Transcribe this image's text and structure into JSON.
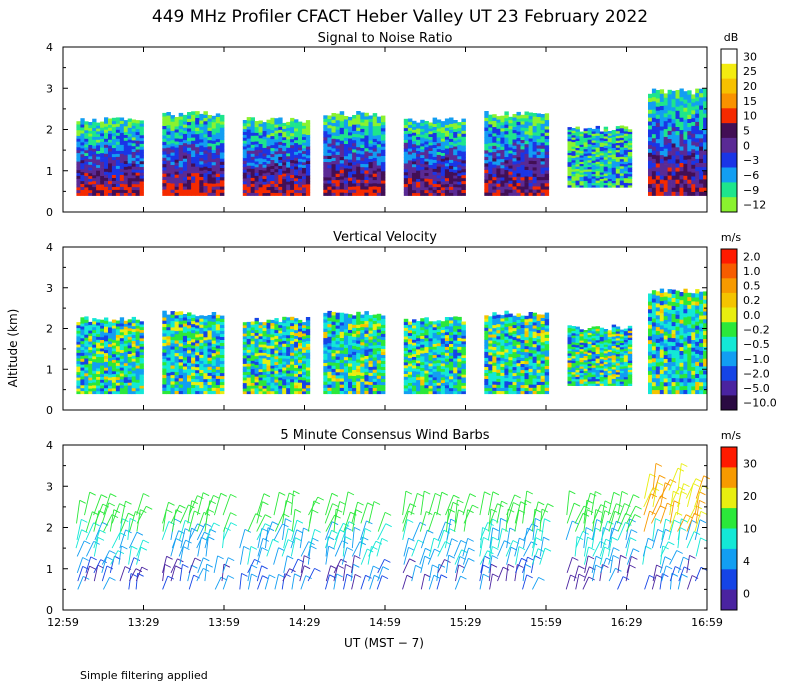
{
  "chart_data": {
    "type": "heatmap",
    "title": "449 MHz Profiler CFACT Heber Valley UT 23 February 2022",
    "note": "Simple filtering applied",
    "xlabel": "UT   (MST − 7)",
    "ylabel": "Altitude (km)",
    "x_ticks": [
      "12:59",
      "13:29",
      "13:59",
      "14:29",
      "14:59",
      "15:29",
      "15:59",
      "16:29",
      "16:59"
    ],
    "x_range_minutes": [
      0,
      240
    ],
    "y_ticks": [
      "0",
      "1",
      "2",
      "3",
      "4"
    ],
    "ylim": [
      0,
      4
    ],
    "panels": [
      {
        "title": "Signal to Noise Ratio",
        "unit": "dB",
        "colorbar_labels": [
          "30",
          "25",
          "20",
          "15",
          "10",
          "5",
          "0",
          "−3",
          "−6",
          "−9",
          "−12"
        ],
        "colorbar_colors": [
          "#ffffff",
          "#f4ec10",
          "#f7c100",
          "#f99200",
          "#f52a00",
          "#420f55",
          "#5a2a95",
          "#1a35e6",
          "#129ef2",
          "#1ee58c",
          "#8af22f"
        ]
      },
      {
        "title": "Vertical Velocity",
        "unit": "m/s",
        "colorbar_labels": [
          "2.0",
          "1.0",
          "0.5",
          "0.2",
          "0.0",
          "−0.2",
          "−0.5",
          "−1.0",
          "−2.0",
          "−5.0",
          "−10.0"
        ],
        "colorbar_colors": [
          "#ff1a00",
          "#f75c00",
          "#f79a00",
          "#f4c400",
          "#e8ee10",
          "#2be83a",
          "#13e8d6",
          "#129ef2",
          "#1544e6",
          "#4a23a0",
          "#2a0a42"
        ]
      },
      {
        "title": "5 Minute Consensus Wind Barbs",
        "unit": "m/s",
        "colorbar_labels": [
          "30",
          "20",
          "10",
          "4",
          "0"
        ],
        "colorbar_colors": [
          "#ff1a00",
          "#f79a00",
          "#e8ee10",
          "#2be83a",
          "#13e8d6",
          "#129ef2",
          "#1544e6",
          "#4a23a0"
        ]
      }
    ]
  }
}
